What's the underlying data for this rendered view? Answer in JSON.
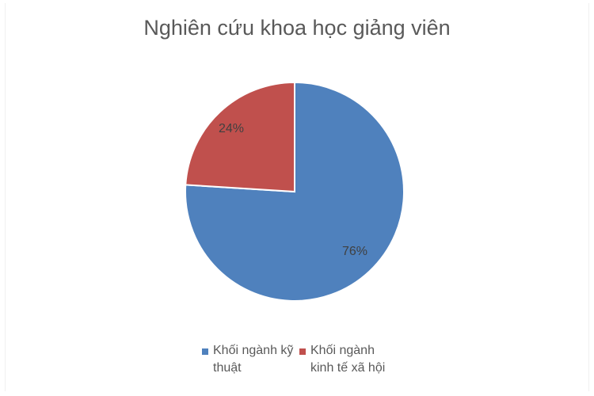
{
  "chart_data": {
    "type": "pie",
    "title": "Nghiên cứu khoa học giảng viên",
    "slices": [
      {
        "name": "Khối ngành kỹ thuật",
        "value": 76,
        "label": "76%",
        "color": "#4f81bd"
      },
      {
        "name": "Khối ngành kinh tế xã hội",
        "value": 24,
        "label": "24%",
        "color": "#c0504d"
      }
    ],
    "start_angle": "12 o'clock, clockwise",
    "legend_position": "bottom"
  }
}
